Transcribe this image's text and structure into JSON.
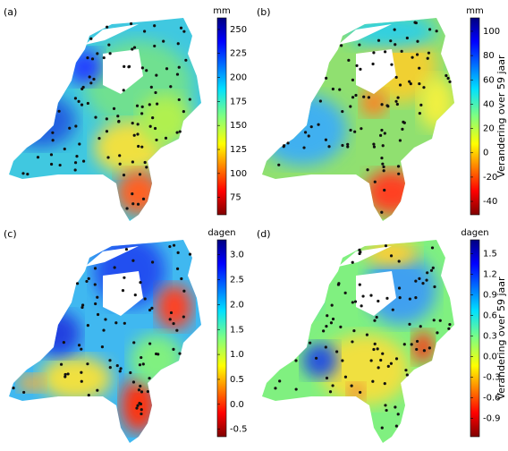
{
  "panels": [
    {
      "label": "(a)",
      "unit": "mm",
      "clim": [
        57,
        262
      ],
      "ticks": [
        250,
        225,
        200,
        175,
        150,
        125,
        100,
        75
      ]
    },
    {
      "label": "(b)",
      "unit": "mm",
      "clim": [
        -51,
        111
      ],
      "ticks": [
        100,
        80,
        60,
        40,
        20,
        0,
        -20,
        -40
      ],
      "side_label": "Verandering over 59 jaar"
    },
    {
      "label": "(c)",
      "unit": "dagen",
      "clim": [
        -0.65,
        3.3
      ],
      "ticks": [
        {
          "value": 3,
          "label": "3.0"
        },
        {
          "value": 2.5,
          "label": "2.5"
        },
        {
          "value": 2,
          "label": "2.0"
        },
        {
          "value": 1.5,
          "label": "1.5"
        },
        {
          "value": 1,
          "label": "1.0"
        },
        {
          "value": 0.5,
          "label": "0.5"
        },
        {
          "value": 0,
          "label": "0.0"
        },
        {
          "value": -0.5,
          "label": "-0.5"
        }
      ]
    },
    {
      "label": "(d)",
      "unit": "dagen",
      "clim": [
        -1.17,
        1.7
      ],
      "ticks": [
        {
          "value": 1.5,
          "label": "1.5"
        },
        {
          "value": 1.2,
          "label": "1.2"
        },
        {
          "value": 0.9,
          "label": "0.9"
        },
        {
          "value": 0.6,
          "label": "0.6"
        },
        {
          "value": 0.3,
          "label": "0.3"
        },
        {
          "value": 0,
          "label": "0.0"
        },
        {
          "value": -0.3,
          "label": "-0.3"
        },
        {
          "value": -0.6,
          "label": "-0.6"
        },
        {
          "value": -0.9,
          "label": "-0.9"
        }
      ],
      "side_label": "Verandering over 59 jaar"
    }
  ]
}
